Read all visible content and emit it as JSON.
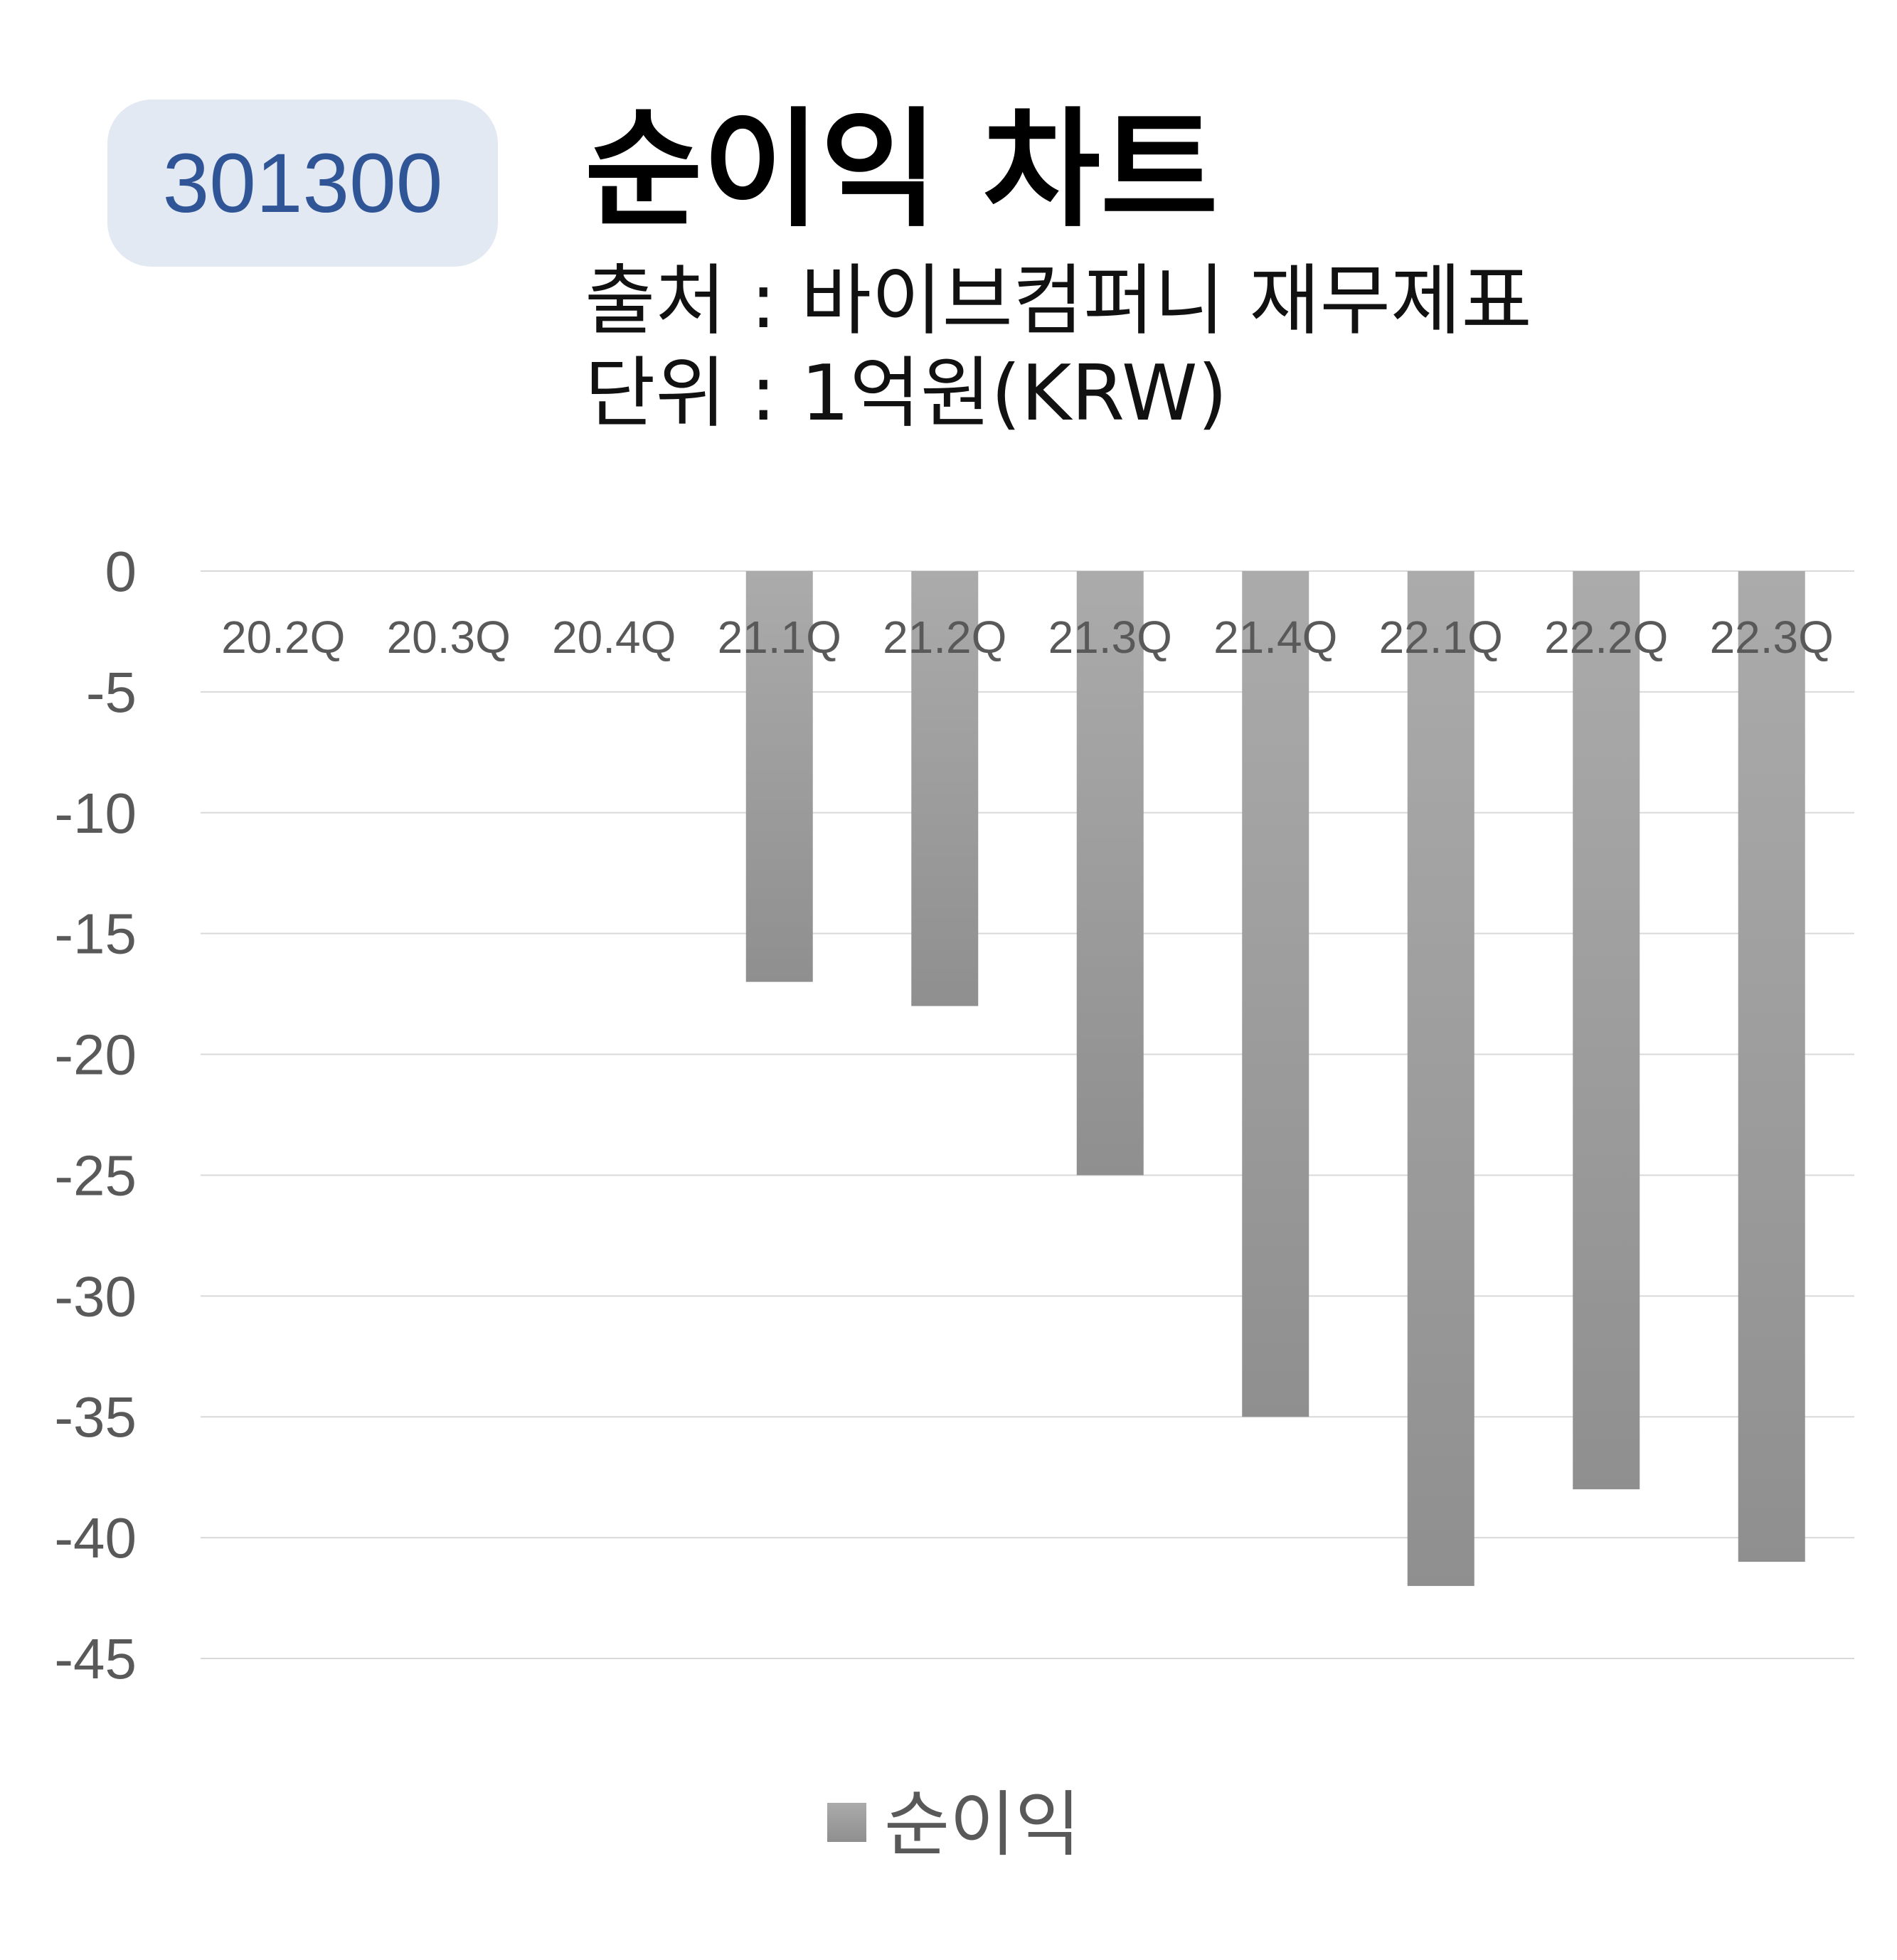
{
  "header": {
    "code": "301300",
    "title": "순이익 차트",
    "source": "출처 : 바이브컴퍼니 재무제표",
    "unit": "단위 : 1억원(KRW)"
  },
  "colors": {
    "badge_bg": "#e3e9f3",
    "badge_text": "#2f5597",
    "bar_top": "#ababab",
    "bar_bottom": "#8f8f8f",
    "grid": "#d9d9d9",
    "tick_text": "#595959"
  },
  "chart_data": {
    "type": "bar",
    "categories": [
      "20.2Q",
      "20.3Q",
      "20.4Q",
      "21.1Q",
      "21.2Q",
      "21.3Q",
      "21.4Q",
      "22.1Q",
      "22.2Q",
      "22.3Q"
    ],
    "series": [
      {
        "name": "순이익",
        "values": [
          null,
          null,
          null,
          -17,
          -18,
          -25,
          -35,
          -42,
          -38,
          -41
        ]
      }
    ],
    "ylim": [
      -45,
      0
    ],
    "yticks": [
      0,
      -5,
      -10,
      -15,
      -20,
      -25,
      -30,
      -35,
      -40,
      -45
    ],
    "grid": true,
    "legend": "bottom"
  }
}
